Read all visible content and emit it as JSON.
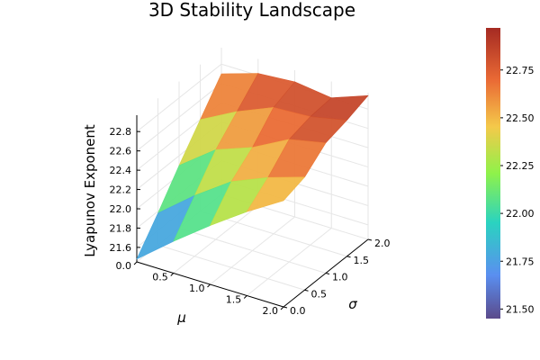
{
  "chart_data": {
    "type": "surface",
    "title": "3D Stability Landscape",
    "xlabel": "μ",
    "ylabel": "σ",
    "zlabel": "Lyapunov Exponent",
    "x": [
      0.0,
      0.5,
      1.0,
      1.5,
      2.0
    ],
    "y": [
      0.0,
      0.5,
      1.0,
      1.5,
      2.0
    ],
    "xlim": [
      0.0,
      2.0
    ],
    "ylim": [
      0.0,
      2.0
    ],
    "zlim": [
      21.45,
      22.97
    ],
    "x_ticks": [
      "0.0",
      "0.5",
      "1.0",
      "1.5",
      "2.0"
    ],
    "y_ticks": [
      "0.0",
      "0.5",
      "1.0",
      "1.5",
      "2.0"
    ],
    "z_ticks": [
      "21.6",
      "21.8",
      "22.0",
      "22.2",
      "22.4",
      "22.6",
      "22.8"
    ],
    "z": [
      [
        21.48,
        21.78,
        22.1,
        22.4,
        22.7
      ],
      [
        21.78,
        22.08,
        22.38,
        22.6,
        22.82
      ],
      [
        22.06,
        22.34,
        22.52,
        22.76,
        22.85
      ],
      [
        22.32,
        22.5,
        22.72,
        22.78,
        22.8
      ],
      [
        22.55,
        22.62,
        22.8,
        22.86,
        22.94
      ]
    ],
    "colorbar": {
      "ticks": [
        "21.50",
        "21.75",
        "22.00",
        "22.25",
        "22.50",
        "22.75"
      ],
      "range": [
        21.45,
        22.97
      ],
      "colormap": "turbo"
    },
    "grid": true
  }
}
